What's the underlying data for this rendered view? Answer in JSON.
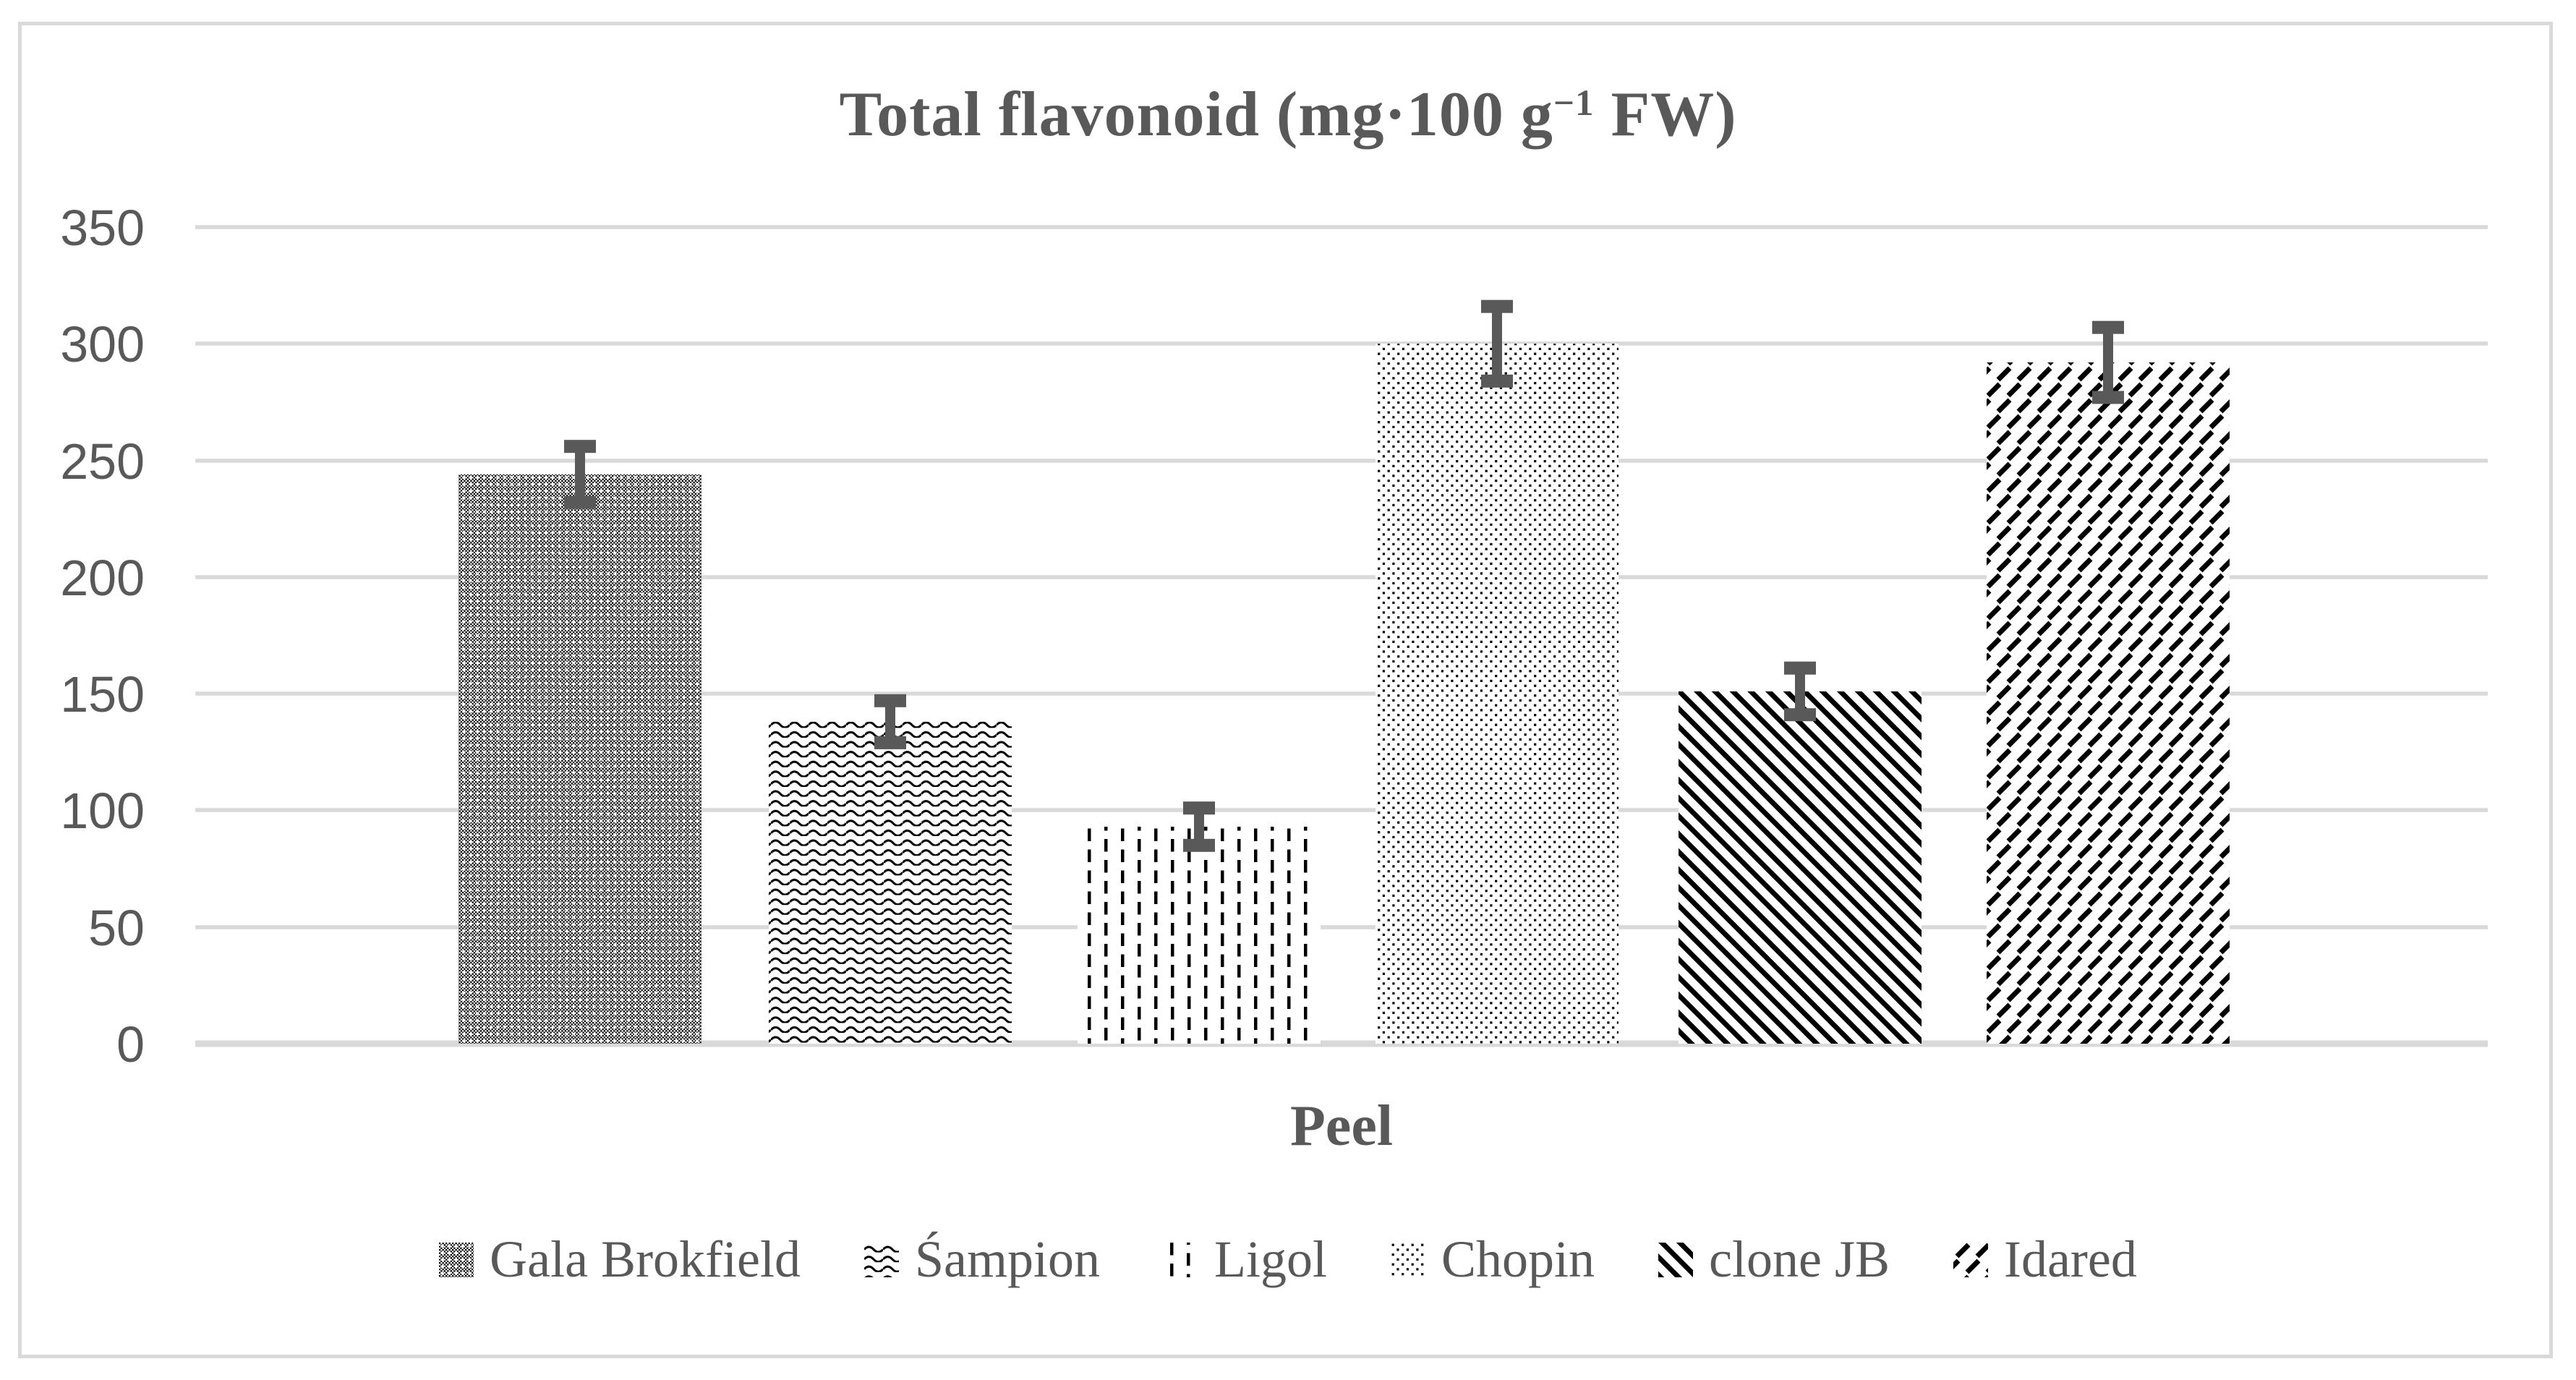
{
  "title": {
    "prefix": "Total flavonoid (mg·100 g",
    "sup": "−1",
    "suffix": " FW)"
  },
  "x_axis": {
    "label": "Peel"
  },
  "y_axis": {
    "tick_labels": [
      "350",
      "300",
      "250",
      "200",
      "150",
      "100",
      "50",
      "0"
    ],
    "min": 0,
    "max": 350,
    "step": 50
  },
  "legend": {
    "items": [
      {
        "label": "Gala Brokfield",
        "pattern": "dotted-checker"
      },
      {
        "label": "Śampion",
        "pattern": "horizontal-waves"
      },
      {
        "label": "Ligol",
        "pattern": "vertical-dashes"
      },
      {
        "label": "Chopin",
        "pattern": "sparse-dots"
      },
      {
        "label": "clone JB",
        "pattern": "thick-diagonal-stripes"
      },
      {
        "label": "Idared",
        "pattern": "diagonal-weave"
      }
    ]
  },
  "colors": {
    "text": "#595959",
    "gridline": "#d9d9d9",
    "error_bar": "#595959",
    "pattern_ink": "#000000",
    "frame_border": "#d9d9d9",
    "background": "#ffffff"
  },
  "chart_data": {
    "type": "bar",
    "title": "Total flavonoid (mg·100 g−1 FW)",
    "categories": [
      "Peel"
    ],
    "series": [
      {
        "name": "Gala Brokfield",
        "value": 244,
        "error": 12
      },
      {
        "name": "Śampion",
        "value": 138,
        "error": 9
      },
      {
        "name": "Ligol",
        "value": 93,
        "error": 8
      },
      {
        "name": "Chopin",
        "value": 300,
        "error": 16
      },
      {
        "name": "clone JB",
        "value": 151,
        "error": 10
      },
      {
        "name": "Idared",
        "value": 292,
        "error": 15
      }
    ],
    "xlabel": "Peel",
    "ylabel": "",
    "ylim": [
      0,
      350
    ],
    "grid": "horizontal",
    "legend_position": "bottom",
    "error_bars": true
  }
}
